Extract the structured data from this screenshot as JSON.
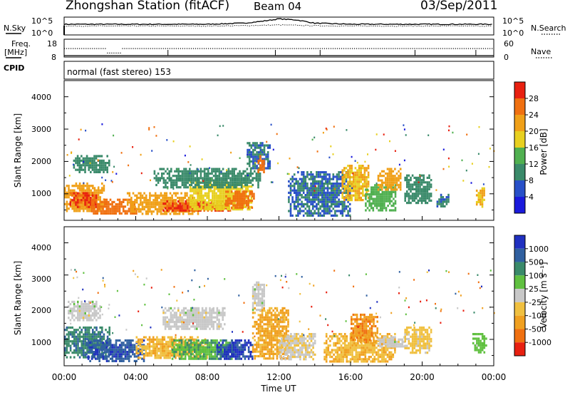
{
  "header": {
    "station": "Zhongshan Station (fitACF)",
    "beam": "Beam 04",
    "date": "03/Sep/2011"
  },
  "noise_panel": {
    "left_label": "N.Sky",
    "right_label": "N.Search",
    "left_ticks": [
      "10^5",
      "10^0"
    ],
    "right_ticks": [
      "10^5",
      "10^0"
    ]
  },
  "freq_panel": {
    "left_label_1": "Freq.",
    "left_label_2": "[MHz]",
    "right_label": "Nave",
    "left_ticks": [
      "18",
      "8"
    ],
    "right_ticks": [
      "60",
      "0"
    ]
  },
  "cpid_panel": {
    "label": "CPID",
    "mode": "normal (fast stereo) 153"
  },
  "x_axis": {
    "ticks": [
      "00:00",
      "04:00",
      "08:00",
      "12:00",
      "16:00",
      "20:00",
      "00:00"
    ],
    "label": "Time UT"
  },
  "power_panel": {
    "ylabel": "Slant Range [km]",
    "yticks": [
      "1000",
      "2000",
      "3000",
      "4000"
    ],
    "colorbar_label": "Power [dB]",
    "colorbar_ticks": [
      "4",
      "8",
      "12",
      "16",
      "20",
      "24",
      "28"
    ],
    "colors": [
      "#1a1adc",
      "#2850c8",
      "#3a8a6a",
      "#50b050",
      "#e8d020",
      "#f0a018",
      "#f07010",
      "#e82010"
    ]
  },
  "velocity_panel": {
    "ylabel": "Slant Range [km]",
    "yticks": [
      "1000",
      "2000",
      "3000",
      "4000"
    ],
    "colorbar_label": "Velocity [m s⁻¹]",
    "colorbar_ticks": [
      "1000",
      "500",
      "100",
      "25",
      "-25",
      "-100",
      "-500",
      "-1000"
    ],
    "colors": [
      "#2030c0",
      "#3060a0",
      "#3a8a6a",
      "#60c040",
      "#c8c8c8",
      "#f0c040",
      "#f0a020",
      "#f07010",
      "#e82010"
    ]
  },
  "chart_data": [
    {
      "type": "line",
      "title": "Zhongshan Station (fitACF)",
      "series": [
        {
          "name": "N.Sky",
          "x": [
            0,
            2,
            4,
            6,
            8,
            10,
            11,
            12,
            13,
            14,
            16,
            18,
            20,
            22,
            24
          ],
          "y": [
            3,
            3,
            3,
            3,
            3,
            3.3,
            3.8,
            4.5,
            4.2,
            3.3,
            3,
            3,
            3,
            3,
            3
          ]
        },
        {
          "name": "N.Search",
          "x": [
            0,
            2,
            4,
            6,
            8,
            10,
            12,
            14,
            16,
            18,
            20,
            22,
            24
          ],
          "y": [
            2.5,
            2.5,
            2.5,
            2.5,
            2.5,
            2.6,
            2.8,
            2.6,
            2.5,
            2.5,
            2.5,
            2.5,
            2.5
          ]
        }
      ],
      "xlim": [
        0,
        24
      ],
      "ylabel": "N.Sky"
    },
    {
      "type": "line",
      "series": [
        {
          "name": "Freq.",
          "x": [
            0,
            2.4,
            2.6,
            3.0,
            3.2,
            24
          ],
          "y": [
            13,
            13,
            10.5,
            10.5,
            13,
            13
          ]
        },
        {
          "name": "Nave",
          "x": [
            0,
            24
          ],
          "y": [
            2,
            2
          ]
        }
      ],
      "xlim": [
        0,
        24
      ],
      "ylabel": "Freq. [MHz]"
    },
    {
      "type": "heatmap",
      "ylabel": "Slant Range [km]",
      "xlabel": "Time UT",
      "xlim": [
        0,
        24
      ],
      "ylim": [
        180,
        4500
      ],
      "colorbar": "Power [dB]",
      "clim": [
        0,
        32
      ],
      "blobs": [
        {
          "t0": 0.0,
          "t1": 2.2,
          "r0": 450,
          "r1": 1350,
          "v": 22
        },
        {
          "t0": 0.3,
          "t1": 1.8,
          "r0": 600,
          "r1": 1050,
          "v": 28
        },
        {
          "t0": 1.5,
          "t1": 4.0,
          "r0": 380,
          "r1": 850,
          "v": 26
        },
        {
          "t0": 3.5,
          "t1": 7.5,
          "r0": 400,
          "r1": 1050,
          "v": 22
        },
        {
          "t0": 5.5,
          "t1": 9.5,
          "r0": 450,
          "r1": 800,
          "v": 28
        },
        {
          "t0": 7.0,
          "t1": 10.5,
          "r0": 500,
          "r1": 1400,
          "v": 18
        },
        {
          "t0": 9.0,
          "t1": 10.6,
          "r0": 600,
          "r1": 1100,
          "v": 26
        },
        {
          "t0": 5.0,
          "t1": 11.0,
          "r0": 1200,
          "r1": 1800,
          "v": 10
        },
        {
          "t0": 10.2,
          "t1": 11.5,
          "r0": 1800,
          "r1": 2600,
          "v": 8
        },
        {
          "t0": 10.8,
          "t1": 11.2,
          "r0": 1700,
          "r1": 2200,
          "v": 26
        },
        {
          "t0": 0.5,
          "t1": 2.5,
          "r0": 1700,
          "r1": 2200,
          "v": 10
        },
        {
          "t0": 12.5,
          "t1": 16.0,
          "r0": 300,
          "r1": 1700,
          "v": 8
        },
        {
          "t0": 15.5,
          "t1": 17.0,
          "r0": 800,
          "r1": 1900,
          "v": 20
        },
        {
          "t0": 16.8,
          "t1": 18.5,
          "r0": 500,
          "r1": 1300,
          "v": 14
        },
        {
          "t0": 17.5,
          "t1": 18.8,
          "r0": 1100,
          "r1": 1800,
          "v": 22
        },
        {
          "t0": 19.0,
          "t1": 20.5,
          "r0": 700,
          "r1": 1600,
          "v": 10
        },
        {
          "t0": 20.8,
          "t1": 21.5,
          "r0": 600,
          "r1": 1000,
          "v": 8
        },
        {
          "t0": 23.0,
          "t1": 23.5,
          "r0": 600,
          "r1": 1200,
          "v": 20
        }
      ]
    },
    {
      "type": "heatmap",
      "ylabel": "Slant Range [km]",
      "xlabel": "Time UT",
      "xlim": [
        0,
        24
      ],
      "ylim": [
        180,
        4500
      ],
      "colorbar": "Velocity [m s⁻¹]",
      "clim": [
        -1000,
        1000
      ],
      "blobs": [
        {
          "t0": 0.0,
          "t1": 2.5,
          "r0": 450,
          "r1": 1400,
          "v": 500
        },
        {
          "t0": 1.2,
          "t1": 4.5,
          "r0": 350,
          "r1": 1000,
          "v": 700
        },
        {
          "t0": 4.0,
          "t1": 8.0,
          "r0": 400,
          "r1": 1100,
          "v": -300
        },
        {
          "t0": 6.0,
          "t1": 9.5,
          "r0": 400,
          "r1": 1000,
          "v": 300
        },
        {
          "t0": 8.5,
          "t1": 10.5,
          "r0": 400,
          "r1": 1000,
          "v": 800
        },
        {
          "t0": 0.2,
          "t1": 2.0,
          "r0": 1600,
          "r1": 2200,
          "v": 0
        },
        {
          "t0": 5.5,
          "t1": 9.0,
          "r0": 1300,
          "r1": 2000,
          "v": 0
        },
        {
          "t0": 10.5,
          "t1": 12.5,
          "r0": 400,
          "r1": 2000,
          "v": -400
        },
        {
          "t0": 10.5,
          "t1": 11.2,
          "r0": 1900,
          "r1": 2800,
          "v": 0
        },
        {
          "t0": 12.0,
          "t1": 14.0,
          "r0": 400,
          "r1": 1200,
          "v": -80
        },
        {
          "t0": 14.5,
          "t1": 18.5,
          "r0": 300,
          "r1": 1200,
          "v": -300
        },
        {
          "t0": 16.0,
          "t1": 17.5,
          "r0": 900,
          "r1": 1800,
          "v": -500
        },
        {
          "t0": 17.5,
          "t1": 19.0,
          "r0": 750,
          "r1": 1100,
          "v": 0
        },
        {
          "t0": 19.0,
          "t1": 20.5,
          "r0": 600,
          "r1": 1400,
          "v": -200
        },
        {
          "t0": 22.8,
          "t1": 23.6,
          "r0": 600,
          "r1": 1200,
          "v": 200
        }
      ]
    }
  ]
}
